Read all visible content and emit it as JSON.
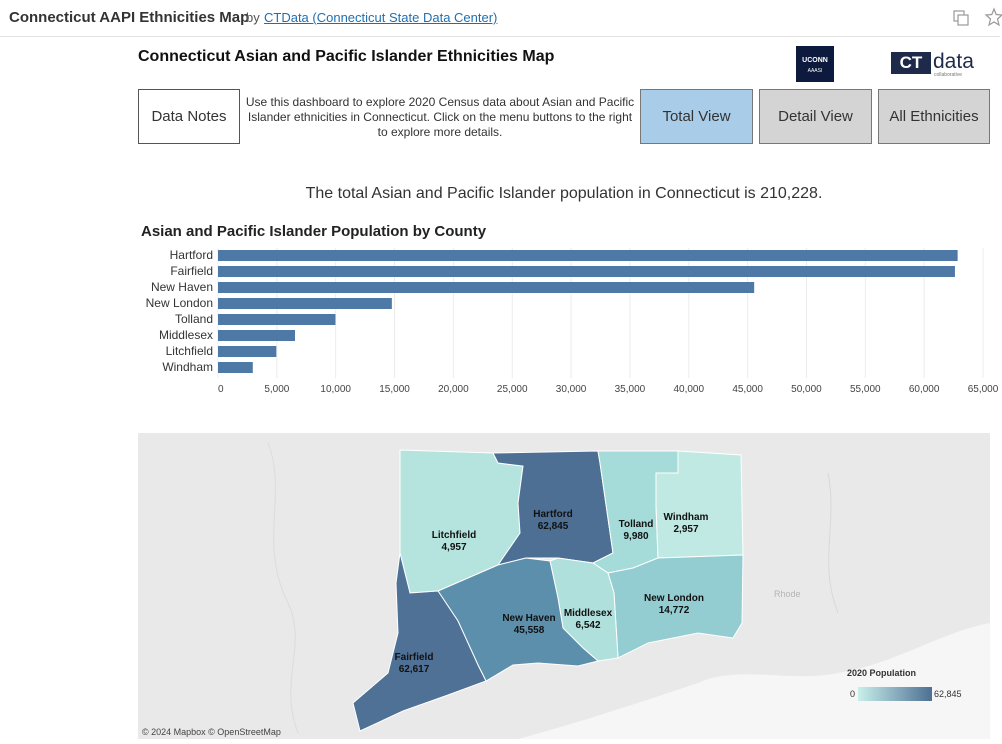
{
  "header": {
    "title": "Connecticut AAPI Ethnicities Map",
    "by": "by",
    "author": "CTData (Connecticut State Data Center)"
  },
  "dashboard": {
    "title": "Connecticut Asian and Pacific Islander Ethnicities Map",
    "logo_uconn": "UCONN",
    "logo_uconn_sub": "AAASI",
    "logo_ct": "CT",
    "logo_data": "data",
    "logo_collab": "collaborative",
    "buttons": {
      "notes": "Data Notes",
      "total": "Total View",
      "detail": "Detail View",
      "all": "All Ethnicities"
    },
    "intro": "Use this dashboard to explore 2020 Census data about Asian and Pacific Islander ethnicities in Connecticut. Click on the menu buttons to the right to explore more details.",
    "total_line": "The total Asian and Pacific Islander population in Connecticut is 210,228."
  },
  "chart_data": {
    "type": "bar",
    "orientation": "horizontal",
    "title": "Asian and Pacific Islander Population by County",
    "categories": [
      "Hartford",
      "Fairfield",
      "New Haven",
      "New London",
      "Tolland",
      "Middlesex",
      "Litchfield",
      "Windham"
    ],
    "values": [
      62845,
      62617,
      45558,
      14772,
      9980,
      6542,
      4957,
      2957
    ],
    "xlim": [
      0,
      65000
    ],
    "xticks": [
      "0",
      "5,000",
      "10,000",
      "15,000",
      "20,000",
      "25,000",
      "30,000",
      "35,000",
      "40,000",
      "45,000",
      "50,000",
      "55,000",
      "60,000",
      "65,000"
    ],
    "bar_color": "#4e79a7",
    "grid": true
  },
  "map": {
    "counties": [
      {
        "name": "Hartford",
        "value": "62,845",
        "color": "#4d6f93"
      },
      {
        "name": "Fairfield",
        "value": "62,617",
        "color": "#4f7196"
      },
      {
        "name": "New Haven",
        "value": "45,558",
        "color": "#5c8fab"
      },
      {
        "name": "Tolland",
        "value": "9,980",
        "color": "#a5dbd8"
      },
      {
        "name": "Windham",
        "value": "2,957",
        "color": "#bfe9e2"
      },
      {
        "name": "Litchfield",
        "value": "4,957",
        "color": "#b5e3de"
      },
      {
        "name": "Middlesex",
        "value": "6,542",
        "color": "#b0e0dc"
      },
      {
        "name": "New London",
        "value": "14,772",
        "color": "#93cdd2"
      }
    ],
    "legend_title": "2020 Population",
    "legend_min": "0",
    "legend_max": "62,845",
    "legend_color_low": "#c9efea",
    "legend_color_high": "#4d6f93",
    "place_label": "Rhode",
    "credit": "© 2024 Mapbox © OpenStreetMap"
  }
}
